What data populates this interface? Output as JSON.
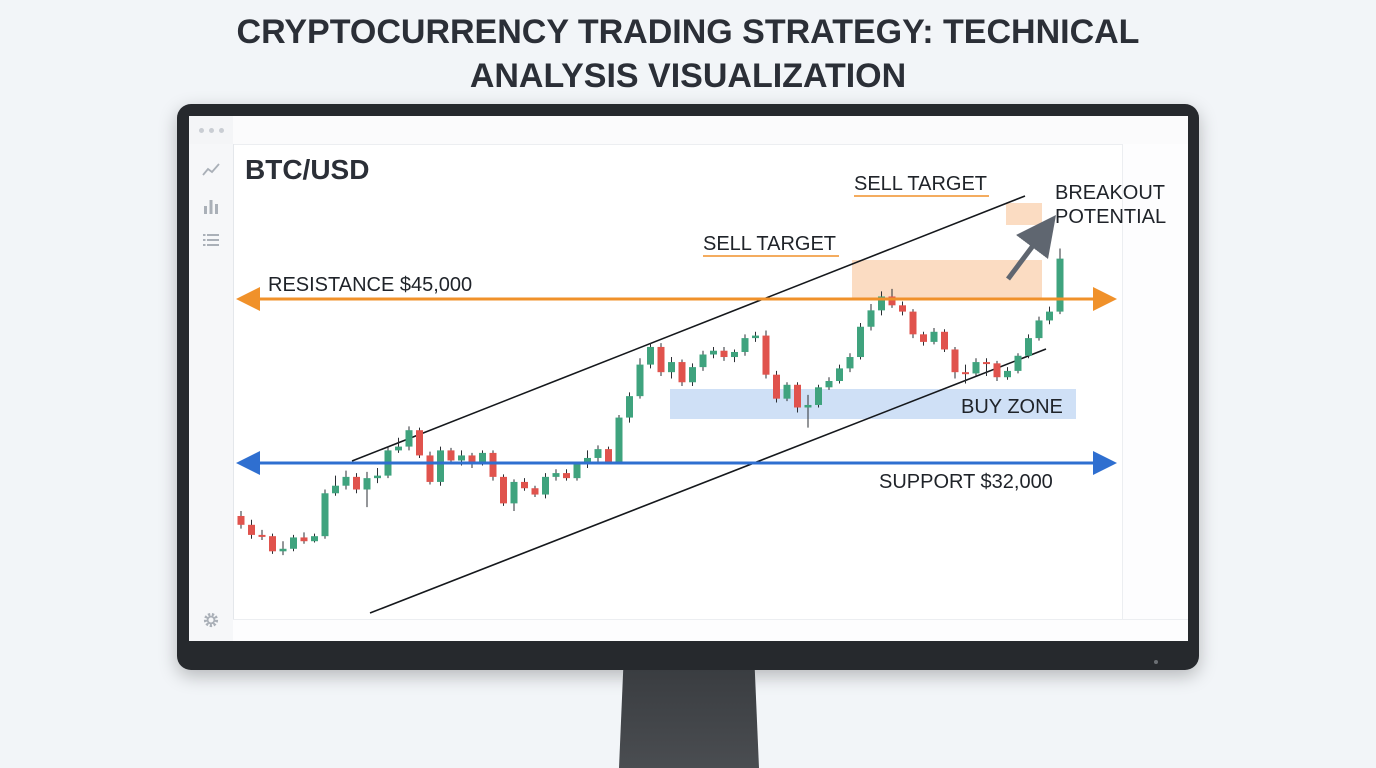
{
  "page": {
    "title_line1": "CRYPTOCURRENCY TRADING STRATEGY: TECHNICAL",
    "title_line2": "ANALYSIS VISUALIZATION"
  },
  "window": {
    "controls": [
      "dot",
      "dot",
      "dot"
    ]
  },
  "sidebar": {
    "icons": [
      "line-chart-icon",
      "bar-chart-icon",
      "list-icon"
    ],
    "bottom_icon": "gear-icon"
  },
  "chart": {
    "pair": "BTC/USD",
    "resistance_label": "RESISTANCE $45,000",
    "support_label": "SUPPORT $32,000",
    "buy_zone_label": "BUY ZONE",
    "sell_target_1": "SELL TARGET",
    "sell_target_2": "SELL TARGET",
    "breakout_line1": "BREAKOUT",
    "breakout_line2": "POTENTIAL"
  },
  "colors": {
    "resistance": "#f0912a",
    "support": "#2f6fd0",
    "bull": "#3fa37e",
    "bear": "#e0534d",
    "buy_zone": "#cfe0f6",
    "sell_zone": "#fbdcc2",
    "channel": "#15181c"
  },
  "chart_data": {
    "type": "candlestick",
    "levels": {
      "resistance": 45000,
      "support": 32000
    },
    "candles": [
      [
        27800,
        27100,
        28200,
        26800
      ],
      [
        27100,
        26300,
        27500,
        26000
      ],
      [
        26300,
        26200,
        26700,
        25900
      ],
      [
        26200,
        25000,
        26400,
        24800
      ],
      [
        25000,
        25200,
        25800,
        24700
      ],
      [
        25200,
        26100,
        26300,
        25000
      ],
      [
        26100,
        25800,
        26500,
        25600
      ],
      [
        25800,
        26200,
        26400,
        25700
      ],
      [
        26200,
        29600,
        29900,
        26000
      ],
      [
        29600,
        30200,
        31000,
        29400
      ],
      [
        30200,
        30900,
        31400,
        29900
      ],
      [
        30900,
        29900,
        31200,
        29600
      ],
      [
        29900,
        30800,
        31300,
        28500
      ],
      [
        30800,
        31000,
        31600,
        30400
      ],
      [
        31000,
        33000,
        33300,
        30800
      ],
      [
        33000,
        33300,
        34000,
        32800
      ],
      [
        33300,
        34600,
        34900,
        33000
      ],
      [
        34600,
        32600,
        34800,
        32400
      ],
      [
        32600,
        30500,
        32900,
        30300
      ],
      [
        30500,
        33000,
        33300,
        30200
      ],
      [
        33000,
        32200,
        33200,
        32000
      ],
      [
        32200,
        32600,
        33000,
        31800
      ],
      [
        32600,
        32000,
        32800,
        31600
      ],
      [
        32000,
        32800,
        33000,
        31800
      ],
      [
        32800,
        30900,
        33000,
        30600
      ],
      [
        30900,
        28800,
        31100,
        28600
      ],
      [
        28800,
        30500,
        30700,
        28200
      ],
      [
        30500,
        30000,
        30800,
        29800
      ],
      [
        30000,
        29500,
        30200,
        29300
      ],
      [
        29500,
        30900,
        31200,
        29200
      ],
      [
        30900,
        31200,
        31500,
        30600
      ],
      [
        31200,
        30800,
        31500,
        30600
      ],
      [
        30800,
        31900,
        32100,
        30600
      ],
      [
        31900,
        32400,
        33000,
        31600
      ],
      [
        32400,
        33100,
        33400,
        32100
      ],
      [
        33100,
        32100,
        33300,
        31900
      ],
      [
        32100,
        35600,
        35800,
        31900
      ],
      [
        35600,
        37300,
        37600,
        35200
      ],
      [
        37300,
        39800,
        40300,
        37100
      ],
      [
        39800,
        41200,
        41500,
        39500
      ],
      [
        41200,
        39200,
        41500,
        38900
      ],
      [
        39200,
        40000,
        40400,
        38700
      ],
      [
        40000,
        38400,
        40200,
        38100
      ],
      [
        38400,
        39600,
        39900,
        38100
      ],
      [
        39600,
        40600,
        40900,
        39300
      ],
      [
        40600,
        40900,
        41200,
        40300
      ],
      [
        40900,
        40400,
        41200,
        40100
      ],
      [
        40400,
        40800,
        41000,
        40000
      ],
      [
        40800,
        41900,
        42200,
        40500
      ],
      [
        41900,
        42100,
        42400,
        41600
      ],
      [
        42100,
        39000,
        42500,
        38700
      ],
      [
        39000,
        37100,
        39300,
        36800
      ],
      [
        37100,
        38200,
        38400,
        36900
      ],
      [
        38200,
        36400,
        38400,
        36000
      ],
      [
        36400,
        36600,
        37400,
        34800
      ],
      [
        36600,
        38000,
        38200,
        36400
      ],
      [
        38000,
        38500,
        38800,
        37800
      ],
      [
        38500,
        39500,
        39800,
        38300
      ],
      [
        39500,
        40400,
        40700,
        39200
      ],
      [
        40400,
        42800,
        43100,
        40200
      ],
      [
        42800,
        44100,
        44600,
        42500
      ],
      [
        44100,
        45200,
        45600,
        43700
      ],
      [
        45200,
        44500,
        45800,
        44300
      ],
      [
        44500,
        44000,
        44800,
        43700
      ],
      [
        44000,
        42200,
        44200,
        41900
      ],
      [
        42200,
        41600,
        42400,
        41300
      ],
      [
        41600,
        42400,
        42700,
        41400
      ],
      [
        42400,
        41000,
        42600,
        40800
      ],
      [
        41000,
        39200,
        41200,
        38700
      ],
      [
        39200,
        39100,
        39800,
        38300
      ],
      [
        39100,
        40000,
        40300,
        38900
      ],
      [
        40000,
        39900,
        40300,
        38900
      ],
      [
        39900,
        38800,
        40100,
        38500
      ],
      [
        38800,
        39300,
        39600,
        38600
      ],
      [
        39300,
        40500,
        40700,
        39100
      ],
      [
        40500,
        41900,
        42200,
        40300
      ],
      [
        41900,
        43300,
        43600,
        41700
      ],
      [
        43300,
        44000,
        44400,
        43000
      ],
      [
        44000,
        48200,
        49000,
        43800
      ]
    ]
  }
}
